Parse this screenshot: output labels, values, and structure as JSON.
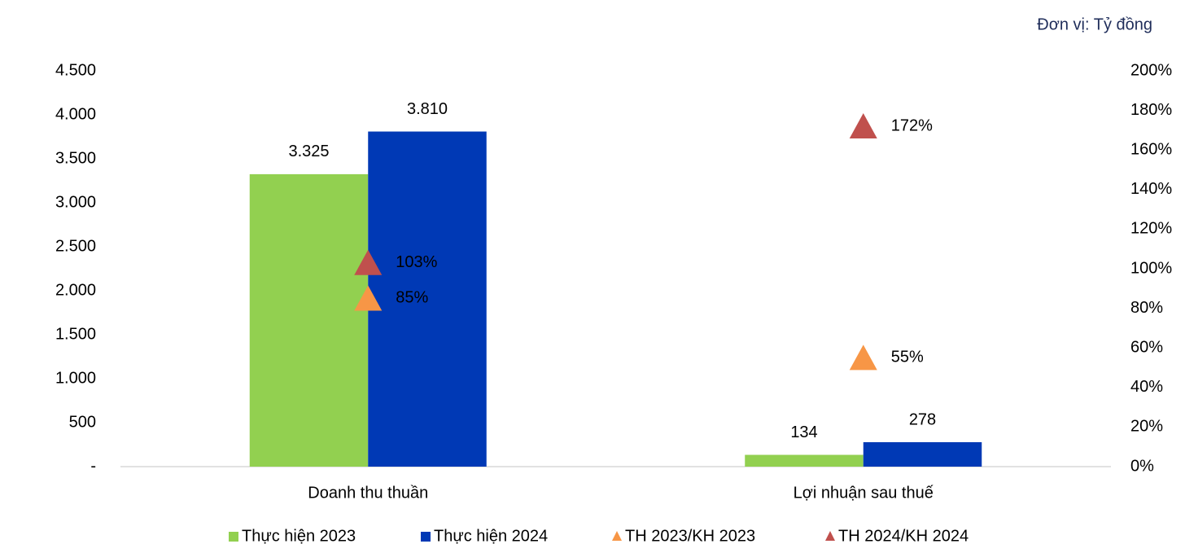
{
  "chart_data": {
    "type": "bar",
    "unit_label": "Đơn vị: Tỷ đồng",
    "categories": [
      "Doanh thu thuần",
      "Lợi nhuận sau thuế"
    ],
    "series": [
      {
        "name": "Thực hiện 2023",
        "color": "#92d050",
        "values": [
          3325,
          134
        ],
        "value_labels": [
          "3.325",
          "134"
        ]
      },
      {
        "name": "Thực hiện 2024",
        "color": "#0039b5",
        "values": [
          3810,
          278
        ],
        "value_labels": [
          "3.810",
          "278"
        ]
      },
      {
        "name": "TH 2023/KH 2023",
        "color": "#f79646",
        "axis": "y2",
        "marker": "triangle",
        "values": [
          85,
          55
        ],
        "value_labels": [
          "85%",
          "55%"
        ]
      },
      {
        "name": "TH 2024/KH 2024",
        "color": "#c0504d",
        "axis": "y2",
        "marker": "triangle",
        "values": [
          103,
          172
        ],
        "value_labels": [
          "103%",
          "172%"
        ]
      }
    ],
    "ylim": [
      0,
      4500
    ],
    "yticks": [
      {
        "value": 0,
        "label": "-"
      },
      500,
      {
        "value": 1000,
        "label": "1.000"
      },
      {
        "value": 1500,
        "label": "1.500"
      },
      {
        "value": 2000,
        "label": "2.000"
      },
      {
        "value": 2500,
        "label": "2.500"
      },
      {
        "value": 3000,
        "label": "3.000"
      },
      {
        "value": 3500,
        "label": "3.500"
      },
      {
        "value": 4000,
        "label": "4.000"
      },
      {
        "value": 4500,
        "label": "4.500"
      }
    ],
    "y2lim": [
      0,
      200
    ],
    "y2ticks": [
      {
        "value": 0,
        "label": "0%"
      },
      {
        "value": 20,
        "label": "20%"
      },
      {
        "value": 40,
        "label": "40%"
      },
      {
        "value": 60,
        "label": "60%"
      },
      {
        "value": 80,
        "label": "80%"
      },
      {
        "value": 100,
        "label": "100%"
      },
      {
        "value": 120,
        "label": "120%"
      },
      {
        "value": 140,
        "label": "140%"
      },
      {
        "value": 160,
        "label": "160%"
      },
      {
        "value": 180,
        "label": "180%"
      },
      {
        "value": 200,
        "label": "200%"
      }
    ],
    "legend": "bottom"
  }
}
